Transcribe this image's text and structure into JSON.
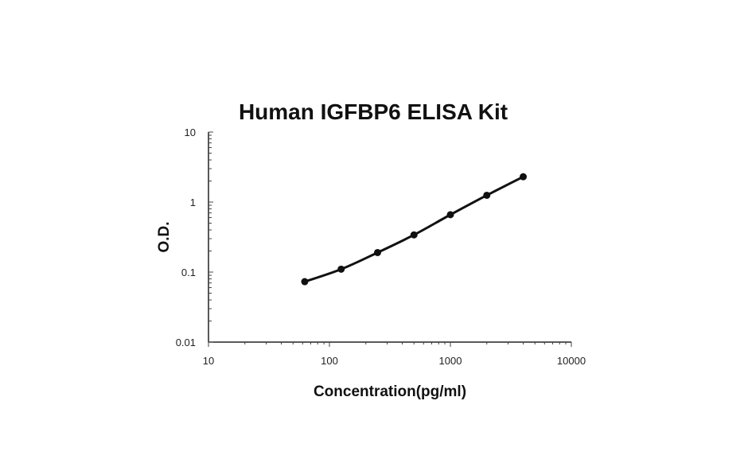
{
  "chart_data": {
    "type": "line",
    "title": "Human IGFBP6 ELISA Kit",
    "xlabel": "Concentration(pg/ml)",
    "ylabel": "O.D.",
    "xscale": "log",
    "yscale": "log",
    "xlim": [
      10,
      10000
    ],
    "ylim": [
      0.01,
      10
    ],
    "xticks": [
      "10",
      "100",
      "1000",
      "10000"
    ],
    "yticks": [
      "10",
      "1",
      "0.1",
      "0.01"
    ],
    "grid": false,
    "series": [
      {
        "x": [
          62.5,
          125,
          250,
          500,
          1000,
          2000,
          4000
        ],
        "y": [
          0.073,
          0.11,
          0.19,
          0.34,
          0.66,
          1.25,
          2.3
        ]
      }
    ]
  }
}
